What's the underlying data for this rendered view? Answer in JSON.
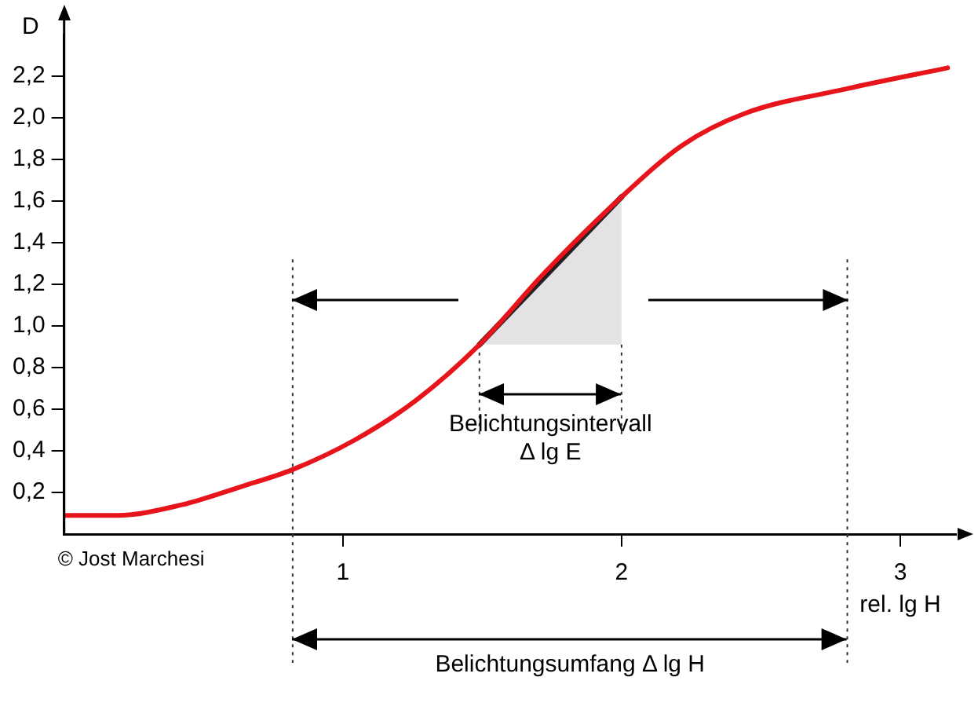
{
  "chart_data": {
    "type": "line",
    "ylabel": "D",
    "xlabel": "rel. lg H",
    "xlim": [
      0,
      3.2
    ],
    "xticks": [
      1,
      2,
      3
    ],
    "ylim": [
      0,
      2.4
    ],
    "yticks": [
      {
        "value": 0.2,
        "label": "0,2"
      },
      {
        "value": 0.4,
        "label": "0,4"
      },
      {
        "value": 0.6,
        "label": "0,6"
      },
      {
        "value": 0.8,
        "label": "0,8"
      },
      {
        "value": 1.0,
        "label": "1,0"
      },
      {
        "value": 1.2,
        "label": "1,2"
      },
      {
        "value": 1.4,
        "label": "1,4"
      },
      {
        "value": 1.6,
        "label": "1,6"
      },
      {
        "value": 1.8,
        "label": "1,8"
      },
      {
        "value": 2.0,
        "label": "2,0"
      },
      {
        "value": 2.2,
        "label": "2,2"
      }
    ],
    "series": [
      {
        "color": "#e8141c",
        "x": [
          0,
          0.19,
          0.42,
          0.64,
          0.82,
          1.04,
          1.26,
          1.49,
          1.72,
          2.0,
          2.22,
          2.44,
          2.81,
          3.17
        ],
        "values": [
          0.09,
          0.09,
          0.14,
          0.23,
          0.31,
          0.45,
          0.64,
          0.91,
          1.25,
          1.62,
          1.87,
          2.02,
          2.14,
          2.24
        ]
      },
      {
        "color": "#000000",
        "x": [
          1.49,
          2.0
        ],
        "values": [
          0.91,
          1.62
        ],
        "lower": [
          0.91,
          0.91
        ],
        "upper": [
          0.91,
          1.62
        ]
      }
    ],
    "ref_lines": [
      {
        "axis": "x",
        "value": 0.82,
        "color": "#333333",
        "line_style": "dotted"
      },
      {
        "axis": "x",
        "value": 2.81,
        "color": "#333333",
        "line_style": "dotted"
      },
      {
        "axis": "x",
        "value": 1.49,
        "color": "#333333",
        "line_style": "dotted"
      },
      {
        "axis": "x",
        "value": 2.0,
        "color": "#333333",
        "line_style": "dotted"
      }
    ],
    "annotations": [
      "© Jost Marchesi",
      "Belichtungsumfang Δ lg H",
      "Belichtungsintervall\nΔ lg E"
    ],
    "grid": false,
    "legend": false,
    "marker": "none",
    "line_style": "solid"
  }
}
